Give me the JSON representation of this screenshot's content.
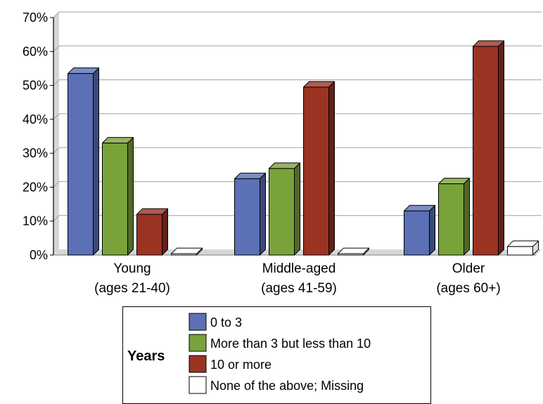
{
  "chart_data": {
    "type": "bar",
    "categories": [
      [
        "Young",
        "(ages 21-40)"
      ],
      [
        "Middle-aged",
        "(ages 41-59)"
      ],
      [
        "Older",
        "(ages 60+)"
      ]
    ],
    "series": [
      {
        "name": "0 to 3",
        "values": [
          53.5,
          22.5,
          13
        ],
        "color": "#5b70b5"
      },
      {
        "name": "More than 3 but less than 10",
        "values": [
          33,
          25.5,
          21
        ],
        "color": "#79a33a"
      },
      {
        "name": "10 or more",
        "values": [
          12,
          49.5,
          61.5
        ],
        "color": "#9b3323"
      },
      {
        "name": "None of the above; Missing",
        "values": [
          0.4,
          0.4,
          2.5
        ],
        "color": "#ffffff"
      }
    ],
    "yticks": [
      "0%",
      "10%",
      "20%",
      "30%",
      "40%",
      "50%",
      "60%",
      "70%"
    ],
    "ylim": [
      0,
      70
    ],
    "grid": true,
    "legend": {
      "title": "Years",
      "placement": "bottom"
    },
    "colors": {
      "wall": "#d6d6d6",
      "gridline": "#a0a0a0",
      "axis": "#000000"
    }
  }
}
